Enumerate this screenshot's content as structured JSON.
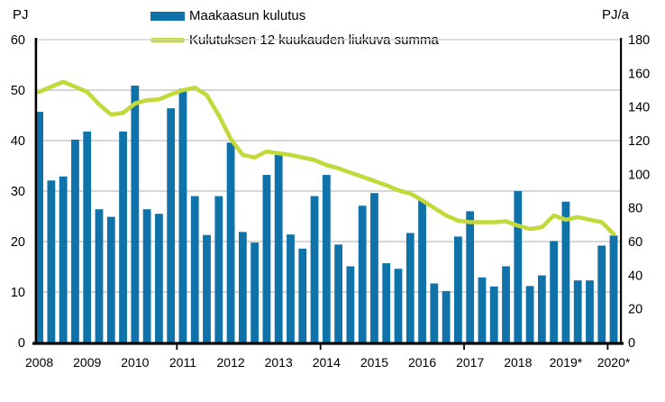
{
  "chart_data": {
    "type": "bar",
    "title": "",
    "x_years": [
      "2008",
      "2009",
      "2010",
      "2011",
      "2012",
      "2013",
      "2014",
      "2015",
      "2016",
      "2017",
      "2018",
      "2019*",
      "2020*"
    ],
    "bars_per_year": 4,
    "series": [
      {
        "name": "Maakaasun kulutus",
        "type": "bar",
        "axis": "left",
        "unit": "PJ",
        "color": "#0f72a9",
        "values": [
          45.7,
          32.1,
          32.9,
          40.2,
          41.8,
          26.4,
          24.9,
          41.8,
          50.9,
          26.4,
          25.5,
          46.4,
          50.3,
          29.0,
          21.3,
          29.0,
          39.6,
          21.9,
          19.8,
          33.2,
          37.2,
          21.4,
          18.6,
          29.0,
          33.2,
          19.4,
          15.1,
          27.1,
          29.6,
          15.7,
          14.6,
          21.7,
          28.2,
          11.7,
          10.2,
          21.0,
          26.0,
          12.9,
          11.1,
          15.1,
          30.0,
          11.2,
          13.3,
          20.1,
          27.9,
          12.3,
          12.3,
          19.2,
          21.2
        ]
      },
      {
        "name": "Kulutuksen 12 kuukauden liukuva summa",
        "type": "line",
        "axis": "right",
        "unit": "PJ/a",
        "color": "#c3d83a",
        "values": [
          149,
          152,
          155,
          152,
          149,
          141.5,
          135.5,
          136.5,
          142,
          144,
          144.5,
          147.5,
          150,
          151.5,
          147,
          135,
          121,
          111.5,
          110,
          113.5,
          112.5,
          111.5,
          110,
          108.5,
          105.5,
          103.5,
          101,
          98.5,
          96,
          93.5,
          90.5,
          88.5,
          84.5,
          80,
          75.5,
          72.5,
          71.5,
          71.5,
          71.5,
          72,
          69.5,
          67.5,
          68.5,
          75.5,
          73,
          74.5,
          73,
          71.5,
          64.5
        ]
      }
    ],
    "left_axis": {
      "title": "PJ",
      "min": 0,
      "max": 60,
      "ticks": [
        0,
        10,
        20,
        30,
        40,
        50,
        60
      ]
    },
    "right_axis": {
      "title": "PJ/a",
      "min": 0,
      "max": 180,
      "ticks": [
        0,
        20,
        40,
        60,
        80,
        100,
        120,
        140,
        160,
        180
      ]
    },
    "grid": true,
    "legend_position": "top",
    "colors": {
      "grid": "#c9c9c9",
      "top_grid": "#d2d2d2",
      "axis": "#000000",
      "background": "#ffffff",
      "tick_text": "#000000"
    }
  }
}
